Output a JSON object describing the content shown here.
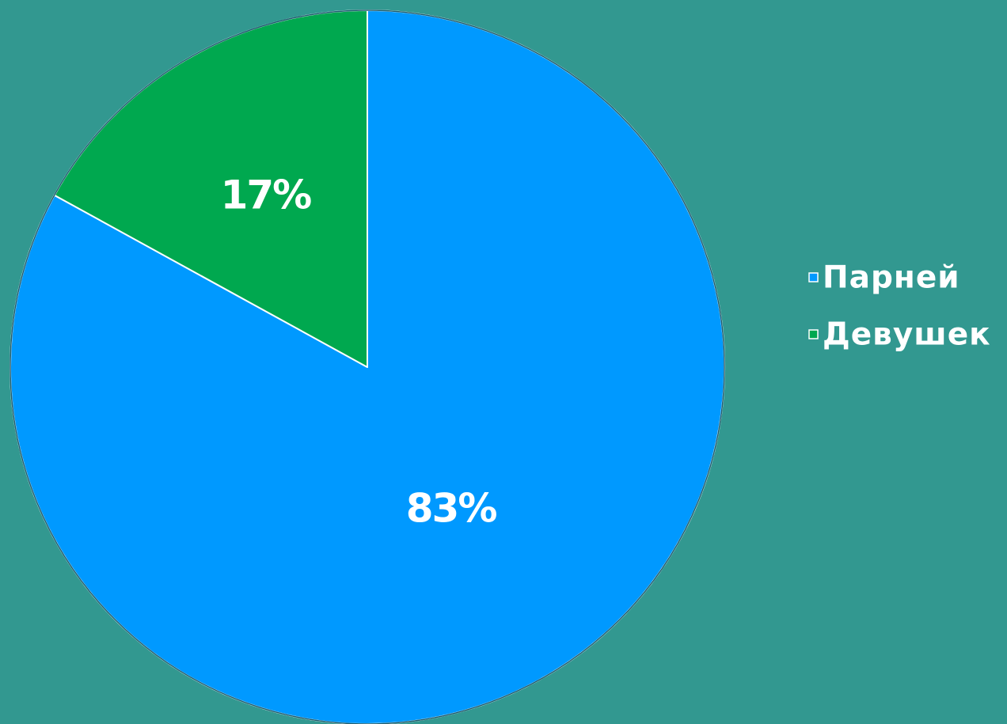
{
  "chart_data": {
    "type": "pie",
    "title": "",
    "slices": [
      {
        "name": "Парней",
        "value": 83,
        "label": "83%",
        "color": "#0099ff"
      },
      {
        "name": "Девушек",
        "value": 17,
        "label": "17%",
        "color": "#00a84f"
      }
    ],
    "start_angle_deg": 0,
    "direction": "clockwise",
    "legend_position": "right"
  },
  "colors": {
    "background": "#329890",
    "slice_border": "#ffffff",
    "outer_border": "#1f5f70"
  }
}
